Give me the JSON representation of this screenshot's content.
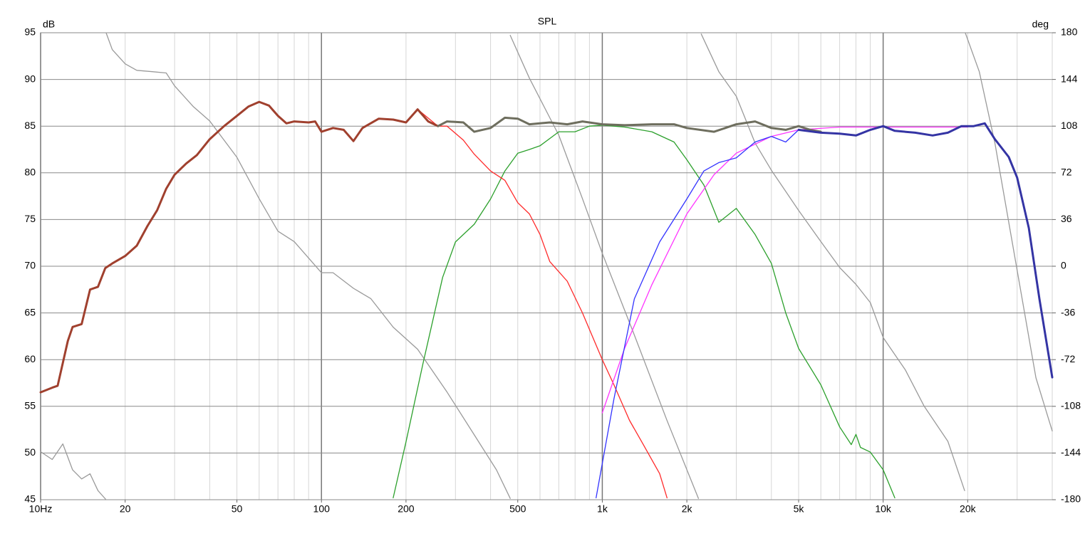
{
  "chart_data": {
    "type": "line",
    "title": "SPL",
    "ylabel": "dB",
    "y2label": "deg",
    "xscale": "log",
    "xlim": [
      10,
      40000
    ],
    "ylim": [
      45,
      95
    ],
    "y2lim": [
      -180,
      180
    ],
    "grid": true,
    "xticks": [
      {
        "value": 10,
        "label": "10Hz"
      },
      20,
      50,
      100,
      200,
      500,
      {
        "value": 1000,
        "label": "1k"
      },
      {
        "value": 2000,
        "label": "2k"
      },
      {
        "value": 5000,
        "label": "5k"
      },
      {
        "value": 10000,
        "label": "10k"
      },
      {
        "value": 20000,
        "label": "20k"
      }
    ],
    "xgrid": [
      10,
      20,
      30,
      40,
      50,
      60,
      70,
      80,
      90,
      100,
      200,
      300,
      400,
      500,
      600,
      700,
      800,
      900,
      1000,
      2000,
      3000,
      4000,
      5000,
      6000,
      7000,
      8000,
      9000,
      10000,
      20000,
      30000,
      40000
    ],
    "yticks": [
      45,
      50,
      55,
      60,
      65,
      70,
      75,
      80,
      85,
      90,
      95
    ],
    "y2ticks": [
      -180,
      -144,
      -108,
      -72,
      -36,
      0,
      36,
      72,
      108,
      144,
      180
    ],
    "series": [
      {
        "color": "#9a9a9a",
        "width": 1.3,
        "axis": "y2",
        "x": [
          10,
          11,
          12,
          13,
          14,
          15,
          16,
          17.1,
          17.1,
          17.1,
          18,
          20,
          22,
          25,
          28,
          30,
          35,
          40,
          50,
          60,
          70,
          80,
          100,
          110,
          130,
          150,
          180,
          220,
          280,
          350,
          420,
          470,
          470,
          470,
          550,
          700,
          850,
          1000,
          1300,
          1700,
          2200,
          2200,
          2250,
          2600,
          3000,
          3500,
          4000,
          5000,
          6000,
          7000,
          8000,
          9000,
          10000,
          12000,
          14000,
          17000,
          19500,
          19500,
          19600,
          22000,
          25000,
          30000,
          35000,
          40000
        ],
        "values": [
          -143,
          -149,
          -137,
          -157,
          -164,
          -160,
          -173,
          -180,
          null,
          180,
          167,
          156,
          151,
          150,
          149,
          139,
          123,
          112,
          84,
          52,
          27,
          19,
          -5,
          -5,
          -17,
          -25,
          -47,
          -64,
          -97,
          -130,
          -157,
          -179,
          null,
          178,
          145,
          101,
          52,
          10,
          -53,
          -119,
          -179,
          null,
          179,
          150,
          131,
          95,
          74,
          43,
          19,
          -1,
          -14,
          -28,
          -55,
          -80,
          -108,
          -135,
          -173,
          null,
          180,
          150,
          95,
          -3,
          -86,
          -127
        ]
      },
      {
        "color": "#2ca02c",
        "width": 1.3,
        "x": [
          180,
          200,
          230,
          270,
          300,
          350,
          400,
          450,
          500,
          550,
          600,
          700,
          800,
          900,
          1000,
          1200,
          1500,
          1800,
          2000,
          2300,
          2600,
          3000,
          3500,
          4000,
          4500,
          5000,
          6000,
          7000,
          7700,
          8000,
          8300,
          9000,
          10000,
          11000
        ],
        "values": [
          45.2,
          51.2,
          59.6,
          68.8,
          72.6,
          74.5,
          77.2,
          80.2,
          82.1,
          82.5,
          82.9,
          84.4,
          84.4,
          85,
          85.1,
          84.9,
          84.4,
          83.3,
          81.4,
          78.7,
          74.7,
          76.2,
          73.4,
          70.3,
          65,
          61.2,
          57.3,
          52.8,
          50.9,
          52,
          50.6,
          50.1,
          48.2,
          45.2
        ]
      },
      {
        "color": "#ff2a2a",
        "width": 1.3,
        "x": [
          220,
          260,
          280,
          320,
          350,
          400,
          450,
          500,
          550,
          600,
          650,
          750,
          850,
          1000,
          1100,
          1250,
          1400,
          1600,
          1700
        ],
        "values": [
          86.8,
          85,
          85,
          83.5,
          82,
          80.2,
          79.2,
          76.8,
          75.6,
          73.4,
          70.5,
          68.4,
          65,
          60,
          57.3,
          53.5,
          50.9,
          47.8,
          45.2
        ]
      },
      {
        "color": "#ff33ff",
        "width": 1.3,
        "x": [
          1000,
          1200,
          1500,
          2000,
          2500,
          3000,
          4000,
          5000,
          7000,
          10000,
          20000
        ],
        "values": [
          54.3,
          61.2,
          68,
          75.6,
          79.8,
          82.1,
          83.9,
          84.6,
          84.9,
          84.9,
          84.9
        ]
      },
      {
        "color": "#3333ff",
        "width": 1.3,
        "x": [
          950,
          1100,
          1300,
          1600,
          2000,
          2300,
          2600,
          3000,
          3500,
          4000,
          4500,
          5000
        ],
        "values": [
          45.2,
          55.8,
          66.5,
          72.6,
          77.2,
          80.2,
          81.1,
          81.6,
          83.3,
          83.9,
          83.3,
          84.6
        ]
      },
      {
        "color": "#a0402e",
        "width": 3,
        "x": [
          10,
          11,
          11.5,
          12.5,
          13,
          14,
          15,
          16,
          17,
          18,
          20,
          22,
          24,
          26,
          28,
          30,
          33,
          36,
          40,
          45,
          50,
          55,
          60,
          65,
          70,
          75,
          80,
          90,
          95,
          100,
          110,
          120,
          130,
          140,
          160,
          180,
          200,
          220,
          240,
          260
        ],
        "values": [
          56.5,
          57,
          57.2,
          62,
          63.5,
          63.8,
          67.5,
          67.8,
          69.8,
          70.3,
          71.1,
          72.2,
          74.3,
          76,
          78.3,
          79.8,
          81,
          81.9,
          83.6,
          85,
          86.1,
          87.1,
          87.6,
          87.2,
          86.1,
          85.3,
          85.5,
          85.4,
          85.5,
          84.4,
          84.8,
          84.6,
          83.4,
          84.8,
          85.8,
          85.7,
          85.4,
          86.8,
          85.5,
          85
        ]
      },
      {
        "color": "#6e6e5e",
        "width": 3,
        "x": [
          260,
          280,
          320,
          350,
          400,
          450,
          500,
          550,
          650,
          750,
          850,
          1000,
          1200,
          1500,
          1800,
          2000,
          2500,
          3000,
          3500,
          4000,
          4500,
          5000,
          5500,
          6000
        ],
        "values": [
          85,
          85.5,
          85.4,
          84.4,
          84.8,
          85.9,
          85.8,
          85.2,
          85.4,
          85.2,
          85.5,
          85.2,
          85.1,
          85.2,
          85.2,
          84.8,
          84.4,
          85.2,
          85.5,
          84.8,
          84.6,
          85,
          84.6,
          84.4
        ]
      },
      {
        "color": "#3434a4",
        "width": 3,
        "x": [
          5000,
          6000,
          7000,
          8000,
          9000,
          10000,
          11000,
          13000,
          15000,
          17000,
          19000,
          21000,
          23000,
          25000,
          28000,
          30000,
          33000,
          36000,
          40000
        ],
        "values": [
          84.6,
          84.3,
          84.2,
          84,
          84.6,
          85,
          84.5,
          84.3,
          84,
          84.3,
          85,
          85,
          85.3,
          83.6,
          81.7,
          79.5,
          74.1,
          66.5,
          58.1
        ]
      }
    ]
  }
}
